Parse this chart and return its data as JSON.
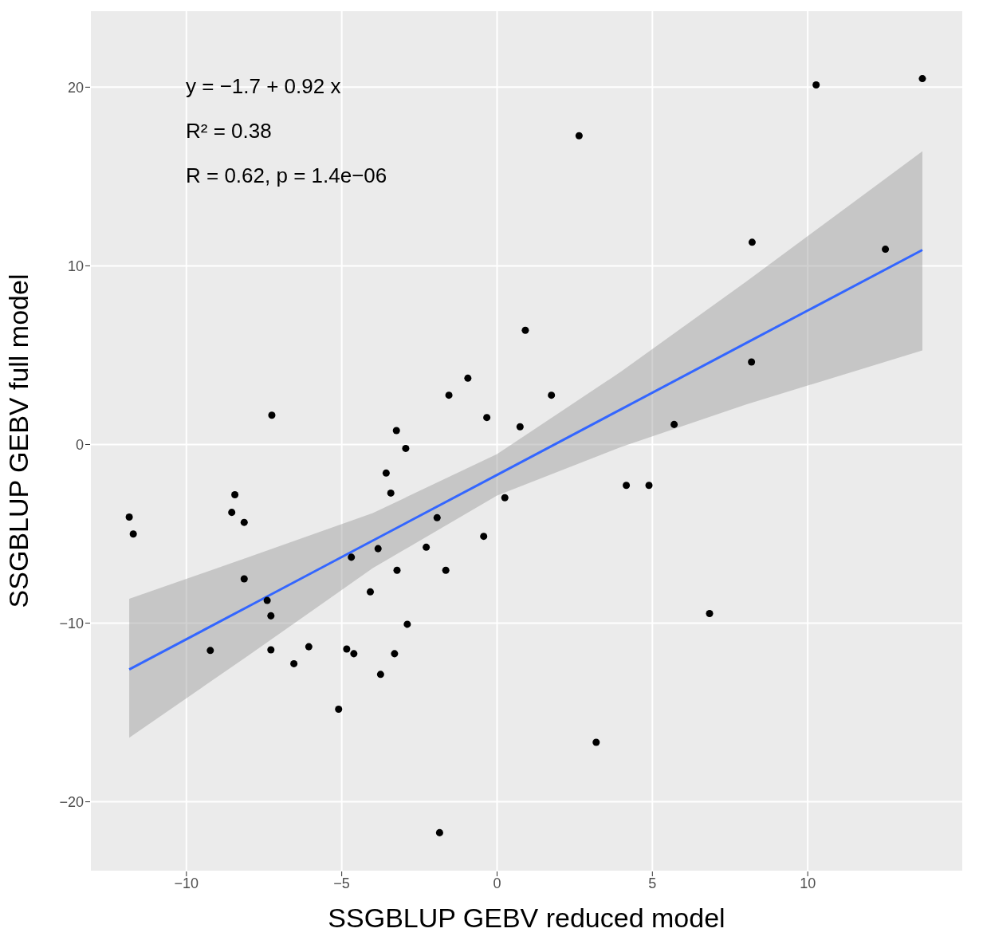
{
  "chart_data": {
    "type": "scatter",
    "xlabel": "SSGBLUP GEBV reduced model",
    "ylabel": "SSGBLUP GEBV full model",
    "xlim": [
      -13.1,
      15
    ],
    "ylim": [
      -23.9,
      24.3
    ],
    "xticks": [
      {
        "value": -10,
        "label": "−10"
      },
      {
        "value": -5,
        "label": "−5"
      },
      0,
      5,
      10
    ],
    "yticks": [
      {
        "value": -20,
        "label": "−20"
      },
      {
        "value": -10,
        "label": "−10"
      },
      0,
      10,
      20
    ],
    "grid": true,
    "annotations": [
      "y = −1.7 + 0.92 x",
      "R² = 0.38",
      "R = 0.62, p = 1.4e−06"
    ],
    "series": [
      {
        "marker": "circle",
        "color": "#000000",
        "x": [
          -11.84,
          -11.71,
          -9.23,
          -8.44,
          -8.54,
          -8.14,
          -8.14,
          -7.4,
          -7.28,
          -7.25,
          -7.28,
          -6.54,
          -6.06,
          -5.1,
          -4.84,
          -4.61,
          -4.69,
          -4.08,
          -3.83,
          -3.75,
          -3.57,
          -3.42,
          -3.3,
          -3.24,
          -3.22,
          -2.94,
          -2.89,
          -2.28,
          -1.93,
          -1.85,
          -1.65,
          -1.55,
          -0.94,
          -0.43,
          -0.33,
          0.25,
          0.74,
          0.91,
          1.75,
          2.64,
          3.19,
          4.16,
          4.89,
          5.7,
          6.84,
          8.19,
          8.21,
          10.27,
          12.5,
          13.69
        ],
        "values": [
          -4.06,
          -5.01,
          -11.53,
          -2.81,
          -3.8,
          -4.36,
          -7.52,
          -8.73,
          -9.59,
          1.64,
          -11.49,
          -12.27,
          -11.32,
          -14.82,
          -11.45,
          -11.71,
          -6.31,
          -8.25,
          -5.83,
          -12.87,
          -1.6,
          -2.72,
          -11.71,
          0.78,
          -7.04,
          -0.22,
          -10.06,
          -5.75,
          -4.1,
          -21.73,
          -7.04,
          2.76,
          3.71,
          -5.14,
          1.51,
          -2.98,
          0.99,
          6.39,
          2.76,
          17.28,
          -16.67,
          -2.29,
          -2.29,
          1.12,
          -9.46,
          4.62,
          11.32,
          20.13,
          10.93,
          20.48
        ]
      },
      {
        "type": "line",
        "color": "#3366ff",
        "x": [
          -11.84,
          -8,
          -4,
          0,
          4,
          8,
          13.69
        ],
        "values": [
          -12.59,
          -9.06,
          -5.38,
          -1.7,
          1.98,
          5.66,
          10.89
        ],
        "lower": [
          -16.41,
          -11.81,
          -6.92,
          -2.86,
          -0.13,
          2.23,
          5.27
        ],
        "upper": [
          -8.64,
          -6.31,
          -3.84,
          -0.54,
          4.09,
          9.09,
          16.41
        ]
      }
    ]
  }
}
